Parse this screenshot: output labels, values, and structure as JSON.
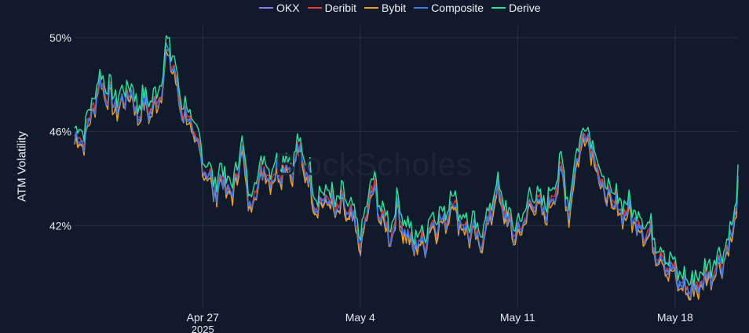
{
  "legend": [
    {
      "name": "OKX",
      "color": "#8a7cf0"
    },
    {
      "name": "Deribit",
      "color": "#e53935"
    },
    {
      "name": "Bybit",
      "color": "#f0a020"
    },
    {
      "name": "Composite",
      "color": "#3a7bf0"
    },
    {
      "name": "Derive",
      "color": "#2ee0a0"
    }
  ],
  "watermark": "BlockScholes",
  "chart_data": {
    "type": "line",
    "title": "",
    "xlabel": "",
    "ylabel": "ATM Volatility",
    "ylim": [
      38.5,
      50.5
    ],
    "y_ticks": [
      {
        "value": 42,
        "label": "42%"
      },
      {
        "value": 46,
        "label": "46%"
      },
      {
        "value": 50,
        "label": "50%"
      }
    ],
    "x_ticks": [
      {
        "value": 5.7,
        "label": "Apr 27",
        "sublabel": "2025"
      },
      {
        "value": 12.7,
        "label": "May 4",
        "sublabel": ""
      },
      {
        "value": 19.7,
        "label": "May 11",
        "sublabel": ""
      },
      {
        "value": 26.7,
        "label": "May 18",
        "sublabel": ""
      }
    ],
    "xlim": [
      0,
      29.5
    ],
    "grid": true,
    "legend_position": "top-center",
    "series": [
      {
        "name": "OKX",
        "color": "#8a7cf0",
        "offset": -0.25
      },
      {
        "name": "Deribit",
        "color": "#e53935",
        "offset": -0.1
      },
      {
        "name": "Bybit",
        "color": "#f0a020",
        "offset": -0.35
      },
      {
        "name": "Composite",
        "color": "#3a7bf0",
        "offset": -0.2
      },
      {
        "name": "Derive",
        "color": "#2ee0a0",
        "offset": 0.25
      }
    ],
    "base_curve": [
      [
        0,
        45.8
      ],
      [
        0.5,
        46.0
      ],
      [
        0.9,
        47.6
      ],
      [
        1.2,
        48.3
      ],
      [
        1.6,
        47.5
      ],
      [
        2.0,
        47.2
      ],
      [
        2.4,
        47.9
      ],
      [
        2.8,
        47.0
      ],
      [
        3.2,
        47.3
      ],
      [
        3.5,
        47.0
      ],
      [
        3.9,
        48.3
      ],
      [
        4.1,
        49.6
      ],
      [
        4.4,
        49.0
      ],
      [
        4.6,
        47.6
      ],
      [
        5.0,
        46.8
      ],
      [
        5.4,
        45.6
      ],
      [
        5.8,
        44.7
      ],
      [
        6.2,
        43.6
      ],
      [
        6.6,
        44.2
      ],
      [
        7.0,
        43.3
      ],
      [
        7.4,
        45.5
      ],
      [
        7.8,
        43.0
      ],
      [
        8.3,
        44.5
      ],
      [
        8.9,
        44.3
      ],
      [
        9.3,
        44.8
      ],
      [
        9.6,
        44.5
      ],
      [
        10.0,
        45.3
      ],
      [
        10.4,
        44.2
      ],
      [
        10.8,
        43.0
      ],
      [
        11.2,
        43.4
      ],
      [
        11.6,
        42.8
      ],
      [
        12.0,
        43.0
      ],
      [
        12.4,
        42.2
      ],
      [
        12.8,
        41.4
      ],
      [
        13.2,
        43.8
      ],
      [
        13.6,
        42.7
      ],
      [
        14.0,
        41.7
      ],
      [
        14.4,
        42.9
      ],
      [
        14.8,
        41.6
      ],
      [
        15.2,
        41.3
      ],
      [
        15.6,
        41.6
      ],
      [
        16.0,
        42.4
      ],
      [
        16.4,
        42.2
      ],
      [
        16.8,
        43.3
      ],
      [
        17.2,
        42.2
      ],
      [
        17.6,
        41.9
      ],
      [
        18.0,
        41.4
      ],
      [
        18.4,
        42.3
      ],
      [
        18.8,
        43.7
      ],
      [
        19.2,
        42.4
      ],
      [
        19.6,
        41.8
      ],
      [
        20.0,
        42.3
      ],
      [
        20.4,
        43.4
      ],
      [
        20.8,
        42.6
      ],
      [
        21.2,
        43.2
      ],
      [
        21.6,
        44.5
      ],
      [
        22.0,
        42.8
      ],
      [
        22.4,
        45.4
      ],
      [
        22.8,
        46.2
      ],
      [
        23.1,
        45.2
      ],
      [
        23.5,
        43.6
      ],
      [
        24.0,
        43.0
      ],
      [
        24.5,
        42.8
      ],
      [
        25.0,
        42.4
      ],
      [
        25.5,
        41.8
      ],
      [
        26.0,
        41.0
      ],
      [
        26.5,
        40.3
      ],
      [
        27.0,
        39.6
      ],
      [
        27.5,
        39.4
      ],
      [
        28.0,
        39.9
      ],
      [
        28.5,
        40.4
      ],
      [
        29.0,
        41.0
      ],
      [
        29.3,
        42.2
      ],
      [
        29.5,
        43.6
      ]
    ]
  }
}
